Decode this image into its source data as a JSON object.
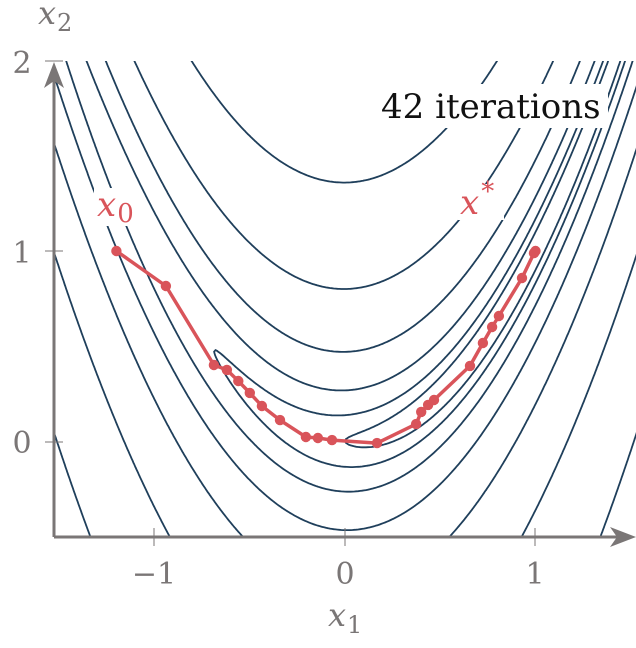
{
  "chart_data": {
    "type": "line",
    "title": "",
    "annotation": "42 iterations",
    "xlabel": "x1",
    "ylabel": "x2",
    "xlim": [
      -1.53,
      1.53
    ],
    "ylim": [
      -0.5,
      2.0
    ],
    "xticks": [
      -1,
      0,
      1
    ],
    "yticks": [
      0,
      1,
      2
    ],
    "xtick_labels": [
      "−1",
      "0",
      "1"
    ],
    "ytick_labels": [
      "0",
      "1",
      "2"
    ],
    "grid": false,
    "contour": {
      "function": "rosenbrock: (1-x1)^2 + 100*(x2-x1^2)^2",
      "levels": [
        1.0,
        2.85,
        8.1,
        23,
        65,
        186,
        530,
        1510,
        4300
      ]
    },
    "series": [
      {
        "name": "optimization path",
        "x": [
          -1.2,
          -0.94,
          -0.688,
          -0.62,
          -0.56,
          -0.5,
          -0.436,
          -0.341,
          -0.205,
          -0.142,
          -0.068,
          0.168,
          0.373,
          0.4,
          0.436,
          0.467,
          0.656,
          0.724,
          0.772,
          0.808,
          0.929,
          0.992,
          1.0
        ],
        "y": [
          1.0,
          0.816,
          0.4,
          0.374,
          0.316,
          0.253,
          0.184,
          0.11,
          0.021,
          0.016,
          0.005,
          -0.011,
          0.089,
          0.153,
          0.19,
          0.216,
          0.395,
          0.516,
          0.6,
          0.658,
          0.858,
          0.989,
          1.0
        ]
      }
    ],
    "point_labels": [
      {
        "name": "start",
        "text": "x",
        "sub": "0",
        "x": -1.2,
        "y": 1.0
      },
      {
        "name": "optimum",
        "text": "x",
        "sup": "*",
        "x": 1.0,
        "y": 1.0
      }
    ]
  },
  "colors": {
    "contour": "#1f3f5b",
    "path": "#d9545a",
    "axis": "#7a7676",
    "text": "#111111"
  },
  "labels": {
    "xlabel_main": "x",
    "xlabel_sub": "1",
    "ylabel_main": "x",
    "ylabel_sub": "2",
    "x0_main": "x",
    "x0_sub": "0",
    "xstar_main": "x",
    "xstar_sup": "*",
    "annotation": "42 iterations",
    "xtick_m1": "−1",
    "xtick_0": "0",
    "xtick_1": "1",
    "ytick_0": "0",
    "ytick_1": "1",
    "ytick_2": "2"
  }
}
